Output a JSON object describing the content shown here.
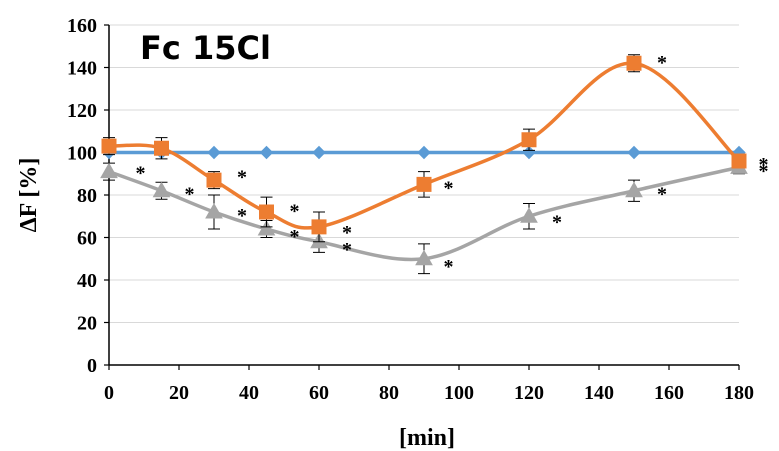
{
  "chart_data": {
    "type": "line",
    "title": "Fc 15Cl",
    "xlabel": "[min]",
    "ylabel": "ΔF [%]",
    "xlim": [
      0,
      180
    ],
    "ylim": [
      0,
      160
    ],
    "x_ticks": [
      0,
      20,
      40,
      60,
      80,
      100,
      120,
      140,
      160,
      180
    ],
    "y_ticks": [
      0,
      20,
      40,
      60,
      80,
      100,
      120,
      140,
      160
    ],
    "grid": "horizontal",
    "legend": "none",
    "series": [
      {
        "color": "#5B9BD5",
        "marker": "diamond",
        "x": [
          0,
          15,
          30,
          45,
          60,
          90,
          120,
          150,
          180
        ],
        "y": [
          100,
          100,
          100,
          100,
          100,
          100,
          100,
          100,
          100
        ],
        "err": [
          0,
          0,
          0,
          0,
          0,
          0,
          0,
          0,
          0
        ]
      },
      {
        "color": "#ED7D31",
        "marker": "square",
        "x": [
          0,
          15,
          30,
          45,
          60,
          90,
          120,
          150,
          180
        ],
        "y": [
          103,
          102,
          87,
          72,
          65,
          85,
          106,
          142,
          96
        ],
        "err": [
          4,
          5,
          4,
          7,
          7,
          6,
          5,
          4,
          3
        ]
      },
      {
        "color": "#A5A5A5",
        "marker": "triangle",
        "x": [
          0,
          15,
          30,
          45,
          60,
          90,
          120,
          150,
          180
        ],
        "y": [
          91,
          82,
          72,
          64,
          58,
          50,
          70,
          82,
          93
        ],
        "err": [
          4,
          4,
          8,
          4,
          5,
          7,
          6,
          5,
          3
        ]
      }
    ],
    "annotations": [
      {
        "text": "*",
        "x": 9,
        "y": 93
      },
      {
        "text": "*",
        "x": 23,
        "y": 83
      },
      {
        "text": "*",
        "x": 38,
        "y": 91
      },
      {
        "text": "*",
        "x": 38,
        "y": 73
      },
      {
        "text": "*",
        "x": 53,
        "y": 75
      },
      {
        "text": "*",
        "x": 53,
        "y": 63
      },
      {
        "text": "*",
        "x": 68,
        "y": 65
      },
      {
        "text": "*",
        "x": 68,
        "y": 57
      },
      {
        "text": "*",
        "x": 97,
        "y": 86
      },
      {
        "text": "*",
        "x": 97,
        "y": 49
      },
      {
        "text": "*",
        "x": 128,
        "y": 70
      },
      {
        "text": "*",
        "x": 158,
        "y": 145
      },
      {
        "text": "*",
        "x": 158,
        "y": 83
      },
      {
        "text": "*",
        "x": 187,
        "y": 97
      },
      {
        "text": "*",
        "x": 187,
        "y": 94
      }
    ]
  }
}
